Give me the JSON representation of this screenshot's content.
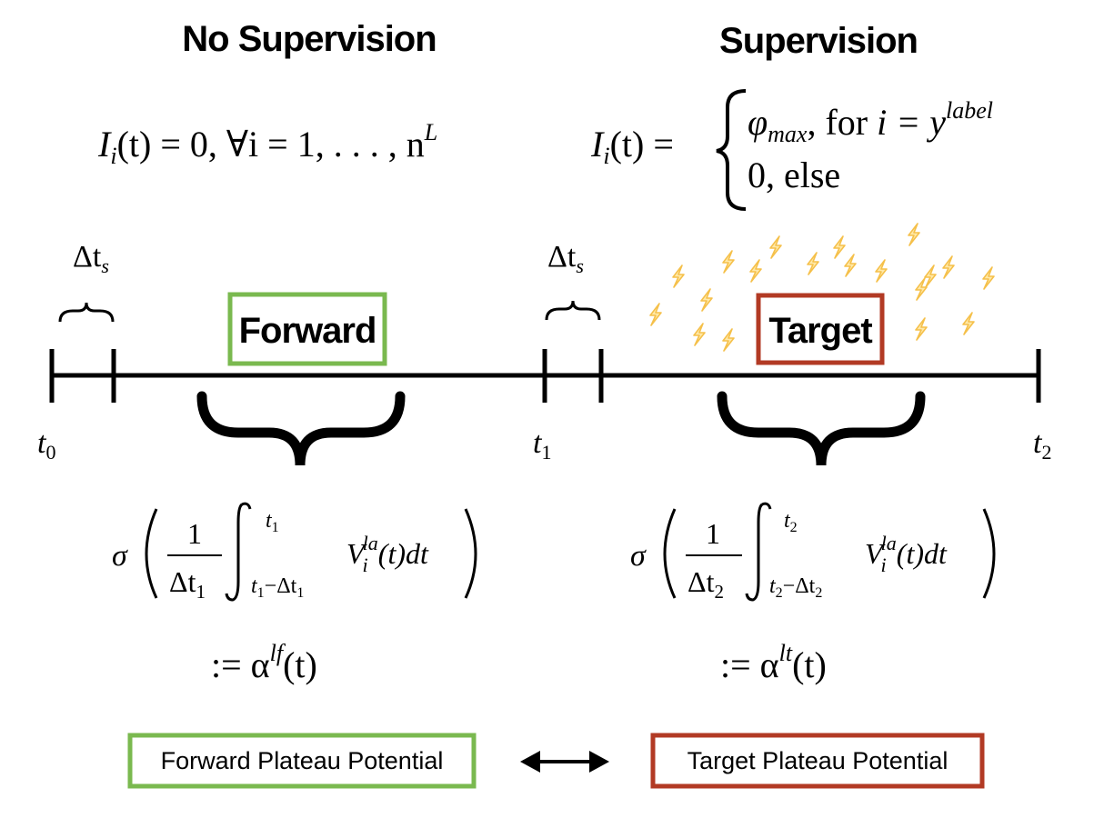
{
  "headings": {
    "left": "No Supervision",
    "right": "Supervision"
  },
  "equations": {
    "left": {
      "lhs": "I",
      "sub": "i",
      "arg": "(t) = 0,  ∀i = 1, . . . , n",
      "sup": "L"
    },
    "right": {
      "lhs": "I",
      "sub": "i",
      "arg": "(t) =",
      "case1_symbol": "φ",
      "case1_sub": "max",
      "case1_text": ",   for ",
      "case1_var": "i = y",
      "case1_sup": "label",
      "case2_text": "0,   else"
    }
  },
  "timeline": {
    "delta_ts_label": "Δt",
    "delta_ts_sub": "s",
    "ticks": [
      {
        "name": "t",
        "sub": "0"
      },
      {
        "name": "t",
        "sub": "1"
      },
      {
        "name": "t",
        "sub": "2"
      }
    ],
    "forward_box": "Forward",
    "target_box": "Target"
  },
  "formulas": {
    "left": {
      "sigma": "σ",
      "num": "1",
      "den": "Δt",
      "den_sub": "1",
      "upper": "t",
      "upper_sub": "1",
      "lower": "t",
      "lower_sub": "1",
      "lower_rest": "−Δt",
      "lower_rest_sub": "1",
      "integrand": "V",
      "integrand_sub": "i",
      "integrand_sup": "la",
      "integrand_rest": "(t)dt",
      "def": ":= α",
      "def_sup": "lf",
      "def_rest": "(t)"
    },
    "right": {
      "sigma": "σ",
      "num": "1",
      "den": "Δt",
      "den_sub": "2",
      "upper": "t",
      "upper_sub": "2",
      "lower": "t",
      "lower_sub": "2",
      "lower_rest": "−Δt",
      "lower_rest_sub": "2",
      "integrand": "V",
      "integrand_sub": "i",
      "integrand_sup": "la",
      "integrand_rest": "(t)dt",
      "def": ":= α",
      "def_sup": "lt",
      "def_rest": "(t)"
    }
  },
  "bottom": {
    "left_label": "Forward Plateau Potential",
    "right_label": "Target Plateau Potential"
  },
  "colors": {
    "green": "#7ab94f",
    "red": "#b23a24",
    "bolt": "#f5c04a",
    "line": "#000000"
  },
  "icons": {
    "bolt": "lightning-bolt-icon",
    "arrow": "double-headed-arrow-icon"
  }
}
